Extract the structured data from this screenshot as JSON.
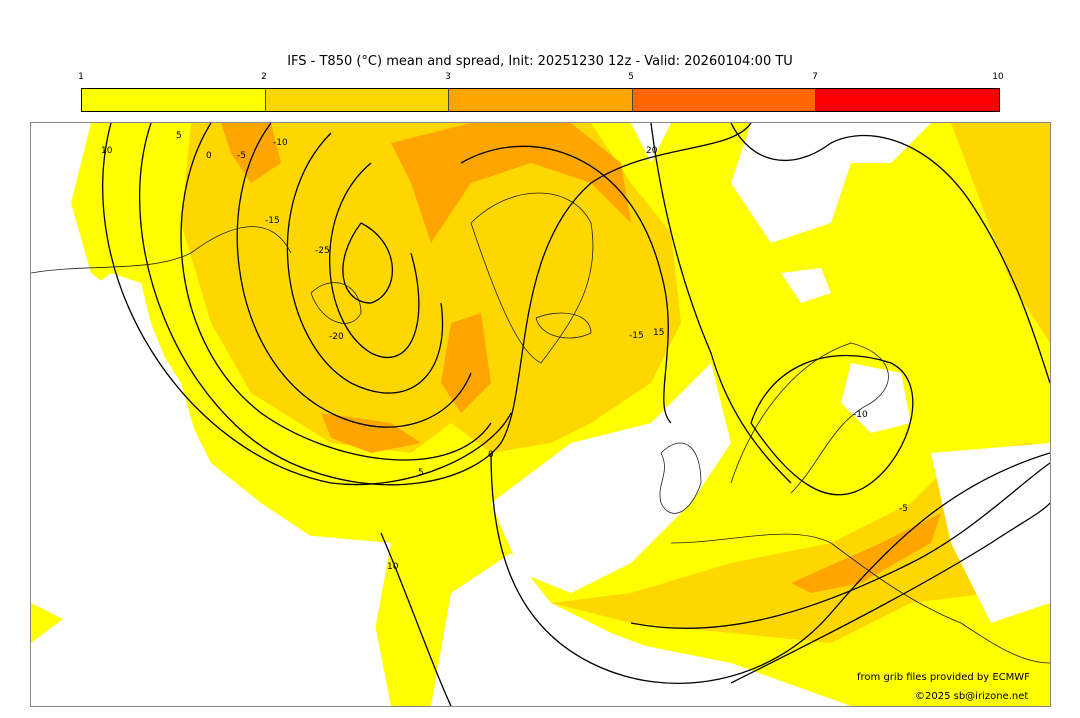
{
  "title": "IFS - T850 (°C) mean and spread, Init: 20251230 12z - Valid: 20260104:00 TU",
  "colorbar": {
    "ticks": [
      "1",
      "2",
      "3",
      "5",
      "7",
      "10"
    ],
    "colors": [
      "#ffff00",
      "#ffd700",
      "#ffa500",
      "#ff6600",
      "#ff0000"
    ]
  },
  "contour_labels": [
    "10",
    "5",
    "0",
    "-5",
    "-10",
    "-15",
    "-20",
    "-25",
    "20",
    "15",
    "-10",
    "-15",
    "0",
    "5",
    "10",
    "-5"
  ],
  "credits": {
    "source": "from grib files provided by ECMWF",
    "copyright": "©2025 sb@irizone.net"
  }
}
